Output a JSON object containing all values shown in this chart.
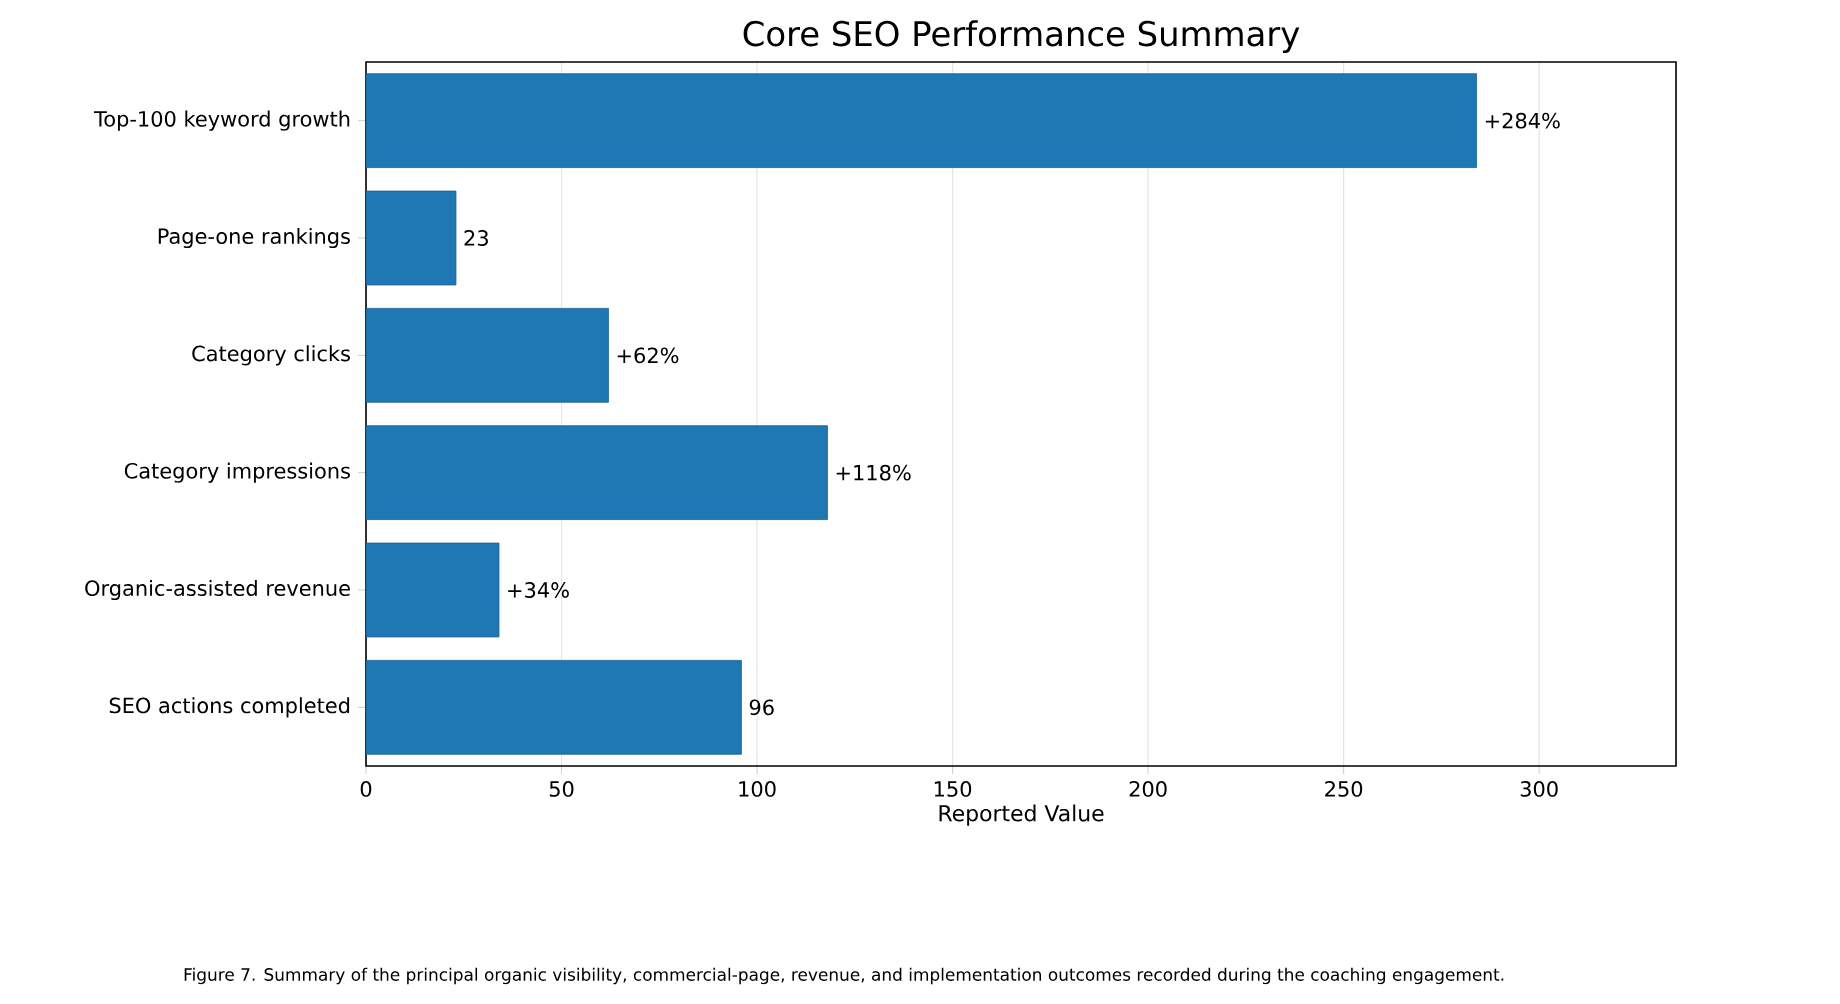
{
  "chart_data": {
    "type": "bar",
    "orientation": "horizontal",
    "title": "Core SEO Performance Summary",
    "xlabel": "Reported Value",
    "categories": [
      "Top-100 keyword growth",
      "Page-one rankings",
      "Category clicks",
      "Category impressions",
      "Organic-assisted revenue",
      "SEO actions completed"
    ],
    "values": [
      284,
      23,
      62,
      118,
      34,
      96
    ],
    "value_labels": [
      "+284%",
      "23",
      "+62%",
      "+118%",
      "+34%",
      "96"
    ],
    "color": "#1f77b4",
    "xlim": [
      0,
      335
    ],
    "xticks": [
      0,
      50,
      100,
      150,
      200,
      250,
      300
    ],
    "grid": "x",
    "annotations": [
      "Figure 7. Summary of the principal organic visibility, commercial-page, revenue, and implementation outcomes recorded during the coaching engagement."
    ]
  }
}
